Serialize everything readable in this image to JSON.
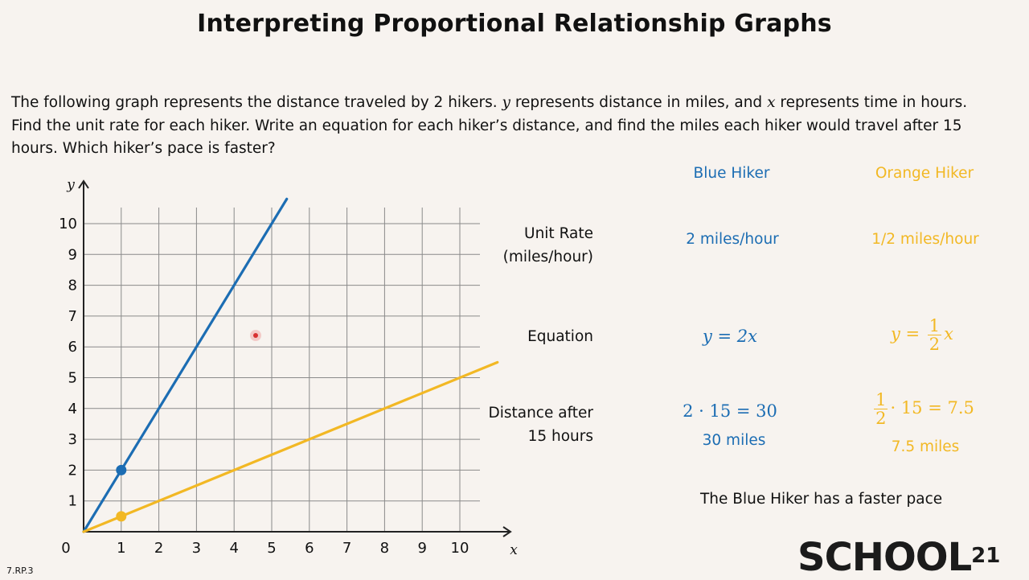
{
  "title": "Interpreting Proportional Relationship Graphs",
  "prompt": {
    "line1_a": "The following graph represents the distance traveled by 2 hikers.  ",
    "line1_y": "y",
    "line1_b": " represents distance in miles, and ",
    "line1_x": "x",
    "line1_c": " represents time in hours.",
    "line2": "Find the unit rate for each hiker.  Write an equation for each hiker’s distance, and find the miles each hiker would travel after 15",
    "line3": "hours. Which hiker’s pace is faster?"
  },
  "table": {
    "blue_header": "Blue Hiker",
    "orange_header": "Orange Hiker",
    "unit_rate_label_1": "Unit Rate",
    "unit_rate_label_2": "(miles/hour)",
    "equation_label": "Equation",
    "distance_label_1": "Distance after",
    "distance_label_2": "15 hours",
    "blue_unit_rate": "2 miles/hour",
    "orange_unit_rate": "1/2 miles/hour",
    "blue_eq_lhs": "y = 2x",
    "orange_eq_lhs": "y = ",
    "orange_eq_num": "1",
    "orange_eq_den": "2",
    "orange_eq_var": "x",
    "blue_calc": "2 · 15 = 30",
    "blue_result": "30 miles",
    "orange_calc_num": "1",
    "orange_calc_den": "2",
    "orange_calc_rest": "· 15 = 7.5",
    "orange_result": "7.5 miles"
  },
  "conclusion": "The Blue Hiker has a faster pace",
  "standard": "7.RP.3",
  "logo": {
    "text": "SCHOOL",
    "sup": "21"
  },
  "colors": {
    "blue": "#1c6db3",
    "orange": "#f2b824",
    "grid": "#8a8a8a"
  },
  "chart_data": {
    "type": "line",
    "x_axis_label": "x",
    "y_axis_label": "y",
    "origin_label": "0",
    "xlim": [
      0,
      10
    ],
    "ylim": [
      0,
      10
    ],
    "x_ticks": [
      "1",
      "2",
      "3",
      "4",
      "5",
      "6",
      "7",
      "8",
      "9",
      "10"
    ],
    "y_ticks": [
      "1",
      "2",
      "3",
      "4",
      "5",
      "6",
      "7",
      "8",
      "9",
      "10"
    ],
    "grid": true,
    "series": [
      {
        "color": "#1c6db3",
        "slope": 2,
        "x_end": 5.4,
        "marker": [
          1,
          2
        ]
      },
      {
        "color": "#f2b824",
        "slope": 0.5,
        "x_end": 11,
        "marker": [
          1,
          0.5
        ]
      }
    ]
  }
}
